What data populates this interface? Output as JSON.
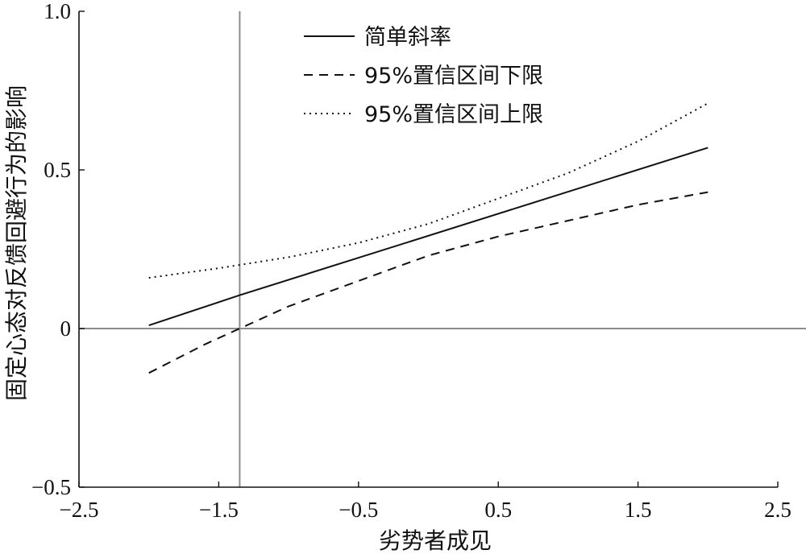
{
  "chart_data": {
    "type": "line",
    "title": "",
    "xlabel": "劣势者成见",
    "ylabel": "固定心态对反馈回避行为的影响",
    "xlim": [
      -2.5,
      2.5
    ],
    "ylim": [
      -0.5,
      1.0
    ],
    "x_ticks": [
      -2.5,
      -1.5,
      -0.5,
      0.5,
      1.5,
      2.5
    ],
    "x_tick_labels": [
      "−2.5",
      "−1.5",
      "−0.5",
      "0.5",
      "1.5",
      "2.5"
    ],
    "y_ticks": [
      -0.5,
      0,
      0.5,
      1.0
    ],
    "y_tick_labels": [
      "−0.5",
      "0",
      "0.5",
      "1.0"
    ],
    "grid": false,
    "legend_position": "top-center",
    "reference_lines": {
      "horizontal_y": 0,
      "vertical_x": -1.35
    },
    "series": [
      {
        "name": "简单斜率",
        "style": "solid",
        "x": [
          -2.0,
          -1.35,
          2.0
        ],
        "y": [
          0.01,
          0.105,
          0.57
        ]
      },
      {
        "name": "95%置信区间下限",
        "style": "dashed",
        "x": [
          -2.0,
          -1.6,
          -1.35,
          -1.0,
          -0.5,
          0.0,
          0.5,
          1.0,
          1.5,
          2.0
        ],
        "y": [
          -0.14,
          -0.05,
          0.0,
          0.07,
          0.15,
          0.23,
          0.29,
          0.34,
          0.39,
          0.43
        ]
      },
      {
        "name": "95%置信区间上限",
        "style": "dotted",
        "x": [
          -2.0,
          -1.5,
          -1.0,
          -0.5,
          0.0,
          0.5,
          1.0,
          1.5,
          2.0
        ],
        "y": [
          0.16,
          0.19,
          0.225,
          0.27,
          0.33,
          0.41,
          0.49,
          0.59,
          0.71
        ]
      }
    ]
  }
}
